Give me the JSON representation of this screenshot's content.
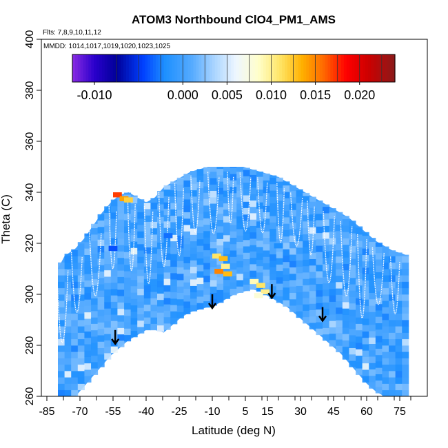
{
  "chart_data": {
    "type": "heatmap",
    "title": "ATOM3 Northbound ClO4_PM1_AMS",
    "flights_note": "Flts: 7,8,9,10,11,12",
    "dates_note": "MMDD: 1014,1017,1019,1020,1023,1025",
    "xlabel": "Latitude (deg N)",
    "ylabel": "Theta (C)",
    "xlim": [
      -85,
      85
    ],
    "ylim": [
      260,
      400
    ],
    "x_ticks": [
      -85,
      -70,
      -55,
      -40,
      -25,
      -10,
      5,
      15,
      30,
      45,
      60,
      75
    ],
    "y_ticks": [
      260,
      280,
      300,
      320,
      340,
      360,
      380,
      400
    ],
    "colorbar": {
      "range": [
        -0.0125,
        0.024
      ],
      "ticks": [
        -0.01,
        0.0,
        0.005,
        0.01,
        0.015,
        0.02
      ],
      "tick_labels": [
        "-0.010",
        "0.000",
        "0.005",
        "0.010",
        "0.015",
        "0.020"
      ],
      "stops": [
        {
          "value": -0.0125,
          "color": "#8a2be2"
        },
        {
          "value": -0.01,
          "color": "#2a00cc"
        },
        {
          "value": -0.0075,
          "color": "#000099"
        },
        {
          "value": -0.0045,
          "color": "#0040ff"
        },
        {
          "value": -0.002,
          "color": "#1e90ff"
        },
        {
          "value": 0.001,
          "color": "#55aaff"
        },
        {
          "value": 0.0035,
          "color": "#a8d4ff"
        },
        {
          "value": 0.006,
          "color": "#eef6ff"
        },
        {
          "value": 0.0085,
          "color": "#ffffcc"
        },
        {
          "value": 0.011,
          "color": "#ffe566"
        },
        {
          "value": 0.0135,
          "color": "#ffb000"
        },
        {
          "value": 0.016,
          "color": "#ff6600"
        },
        {
          "value": 0.0185,
          "color": "#ff0000"
        },
        {
          "value": 0.021,
          "color": "#cc0000"
        },
        {
          "value": 0.024,
          "color": "#8b1a1a"
        }
      ]
    },
    "background_value": 0.0,
    "region_boundary_latitudes": [
      -80,
      -77,
      -72,
      -68,
      -64,
      -60,
      -56,
      -52,
      -48,
      -44,
      -40,
      -36,
      -32,
      -28,
      -24,
      -20,
      -16,
      -12,
      -8,
      -4,
      0,
      4,
      8,
      12,
      16,
      20,
      24,
      28,
      32,
      36,
      40,
      44,
      48,
      52,
      56,
      60,
      64,
      68,
      72,
      76,
      79
    ],
    "region_top_theta": [
      310,
      315,
      318,
      322,
      327,
      332,
      336,
      339,
      340,
      338,
      336,
      338,
      342,
      344,
      346,
      348,
      349,
      350,
      350,
      350,
      350,
      350,
      349,
      348,
      347,
      346,
      344,
      342,
      340,
      338,
      336,
      334,
      332,
      330,
      327,
      324,
      321,
      319,
      317,
      316,
      315
    ],
    "region_bottom_theta": [
      260,
      260,
      260,
      264,
      268,
      272,
      276,
      279,
      282,
      284,
      286,
      286,
      285,
      288,
      291,
      293,
      294,
      295,
      296,
      298,
      300,
      301,
      302,
      301,
      299,
      297,
      295,
      292,
      289,
      286,
      283,
      280,
      277,
      273,
      269,
      265,
      262,
      260,
      260,
      260,
      260
    ],
    "anomalies": [
      {
        "lat": -53,
        "theta": 339,
        "value": 0.017
      },
      {
        "lat": -50,
        "theta": 337.5,
        "value": 0.014
      },
      {
        "lat": -48,
        "theta": 337,
        "value": 0.012
      },
      {
        "lat": -8,
        "theta": 315,
        "value": 0.011
      },
      {
        "lat": -5,
        "theta": 314,
        "value": 0.013
      },
      {
        "lat": -7,
        "theta": 309,
        "value": 0.015
      },
      {
        "lat": -3,
        "theta": 308,
        "value": 0.013
      },
      {
        "lat": -4,
        "theta": 311,
        "value": 0.01
      },
      {
        "lat": 9,
        "theta": 305,
        "value": 0.009
      },
      {
        "lat": 12,
        "theta": 303.5,
        "value": 0.011
      },
      {
        "lat": 14,
        "theta": 301,
        "value": 0.01
      },
      {
        "lat": 11,
        "theta": 299.5,
        "value": 0.008
      },
      {
        "lat": -30,
        "theta": 323,
        "value": -0.003
      },
      {
        "lat": 20,
        "theta": 319,
        "value": -0.002
      },
      {
        "lat": -55,
        "theta": 318,
        "value": -0.004
      }
    ],
    "arrows": [
      {
        "lat": -54,
        "theta": 286
      },
      {
        "lat": -10,
        "theta": 300
      },
      {
        "lat": 17,
        "theta": 304
      },
      {
        "lat": 40,
        "theta": 295
      }
    ]
  }
}
